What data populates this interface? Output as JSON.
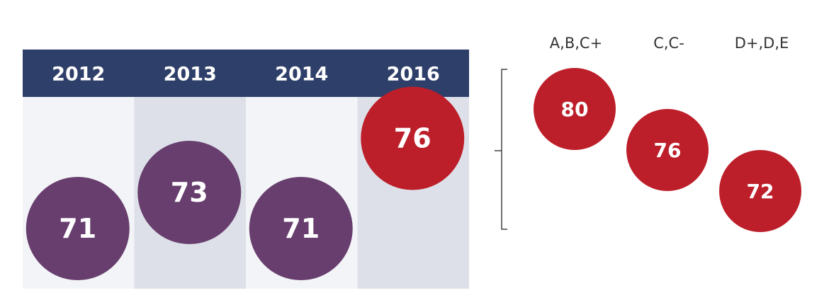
{
  "colors": {
    "header_bg": "#2e3f6a",
    "column_light": "#f3f4f7",
    "column_dark": "#dde0e8",
    "purple": "#673e6e",
    "red": "#bd1f2a",
    "bracket": "#444444"
  },
  "chart_data": [
    {
      "type": "bubble",
      "categories": [
        "2012",
        "2013",
        "2014",
        "2016"
      ],
      "values": [
        71,
        73,
        71,
        76
      ],
      "highlight": "2016",
      "title": "",
      "xlabel": "",
      "ylabel": ""
    },
    {
      "type": "bubble",
      "categories": [
        "A,B,C+",
        "C,C-",
        "D+,D,E"
      ],
      "values": [
        80,
        76,
        72
      ],
      "title": "",
      "xlabel": "",
      "ylabel": ""
    }
  ]
}
